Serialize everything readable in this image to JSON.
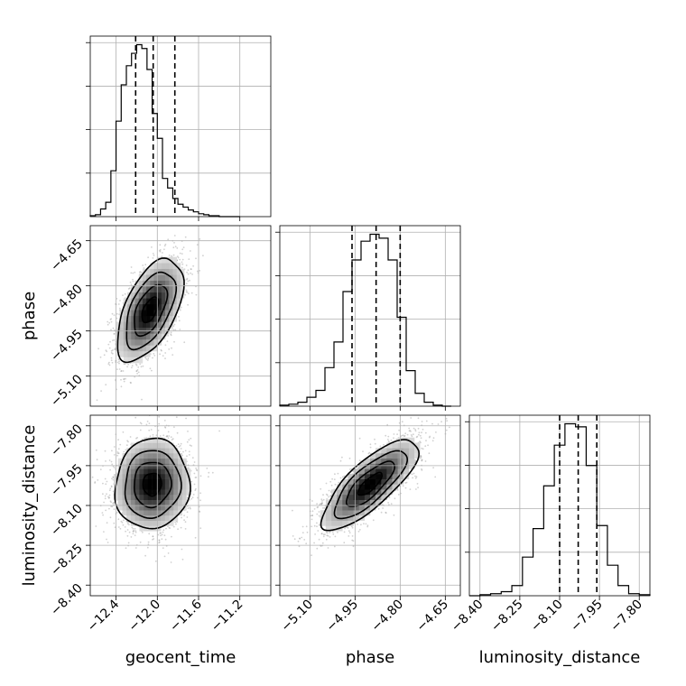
{
  "chart_data": {
    "type": "corner",
    "parameters": [
      {
        "name": "geocent_time",
        "median": -12.04,
        "q16": -12.21,
        "q84": -11.83,
        "range": [
          -12.65,
          -10.9
        ],
        "ticks": [
          -12.4,
          -12.0,
          -11.6,
          -11.2
        ],
        "tick_labels": [
          "−12.4",
          "−12.0",
          "−11.6",
          "−11.2"
        ]
      },
      {
        "name": "phase",
        "median": -4.88,
        "q16": -4.96,
        "q84": -4.8,
        "range": [
          -5.2,
          -4.6
        ],
        "ticks": [
          -5.1,
          -4.95,
          -4.8,
          -4.65
        ],
        "tick_labels": [
          "−5.10",
          "−4.95",
          "−4.80",
          "−4.65"
        ]
      },
      {
        "name": "luminosity_distance",
        "median": -8.03,
        "q16": -8.1,
        "q84": -7.96,
        "range": [
          -8.44,
          -7.76
        ],
        "ticks": [
          -8.4,
          -8.25,
          -8.1,
          -7.95,
          -7.8
        ],
        "tick_labels": [
          "−8.40",
          "−8.25",
          "−8.10",
          "−7.95",
          "−7.80"
        ]
      }
    ],
    "histograms": [
      {
        "param": "geocent_time",
        "edges": [
          -12.65,
          -12.6,
          -12.55,
          -12.5,
          -12.45,
          -12.4,
          -12.35,
          -12.3,
          -12.25,
          -12.2,
          -12.15,
          -12.1,
          -12.05,
          -12.0,
          -11.95,
          -11.9,
          -11.85,
          -11.8,
          -11.75,
          -11.7,
          -11.65,
          -11.6,
          -11.55,
          -11.5,
          -11.45,
          -11.4,
          -11.35,
          -11.3,
          -11.25,
          -11.2
        ],
        "counts": [
          1,
          2,
          8,
          15,
          48,
          100,
          138,
          158,
          171,
          180,
          176,
          154,
          108,
          82,
          40,
          30,
          19,
          13,
          10,
          7,
          5,
          3,
          2,
          1,
          1,
          0,
          0,
          0,
          0
        ]
      },
      {
        "param": "phase",
        "edges": [
          -5.2,
          -5.17,
          -5.14,
          -5.11,
          -5.08,
          -5.05,
          -5.02,
          -4.99,
          -4.96,
          -4.93,
          -4.9,
          -4.87,
          -4.84,
          -4.81,
          -4.78,
          -4.75,
          -4.72,
          -4.69,
          -4.66,
          -4.63
        ],
        "counts": [
          1,
          2,
          4,
          9,
          16,
          39,
          65,
          116,
          148,
          167,
          174,
          170,
          148,
          90,
          36,
          13,
          4,
          1,
          0
        ]
      },
      {
        "param": "luminosity_distance",
        "edges": [
          -8.44,
          -8.4,
          -8.36,
          -8.32,
          -8.28,
          -8.24,
          -8.2,
          -8.16,
          -8.12,
          -8.08,
          -8.04,
          -8.0,
          -7.96,
          -7.92,
          -7.88,
          -7.84,
          -7.8,
          -7.76
        ],
        "counts": [
          0,
          1,
          2,
          4,
          10,
          38,
          66,
          108,
          148,
          169,
          166,
          128,
          69,
          30,
          10,
          2,
          1
        ]
      }
    ],
    "pairs": [
      {
        "x": "geocent_time",
        "y": "phase",
        "center": [
          -12.07,
          -4.88
        ],
        "sigma": [
          0.16,
          0.085
        ],
        "rho": 0.55
      },
      {
        "x": "geocent_time",
        "y": "luminosity_distance",
        "center": [
          -12.05,
          -8.02
        ],
        "sigma": [
          0.18,
          0.085
        ],
        "rho": 0.05
      },
      {
        "x": "phase",
        "y": "luminosity_distance",
        "center": [
          -4.9,
          -8.02
        ],
        "sigma": [
          0.08,
          0.085
        ],
        "rho": 0.78
      }
    ],
    "contour_levels_sigma": [
      0.5,
      1.0,
      1.5,
      2.0
    ],
    "grid": true
  }
}
